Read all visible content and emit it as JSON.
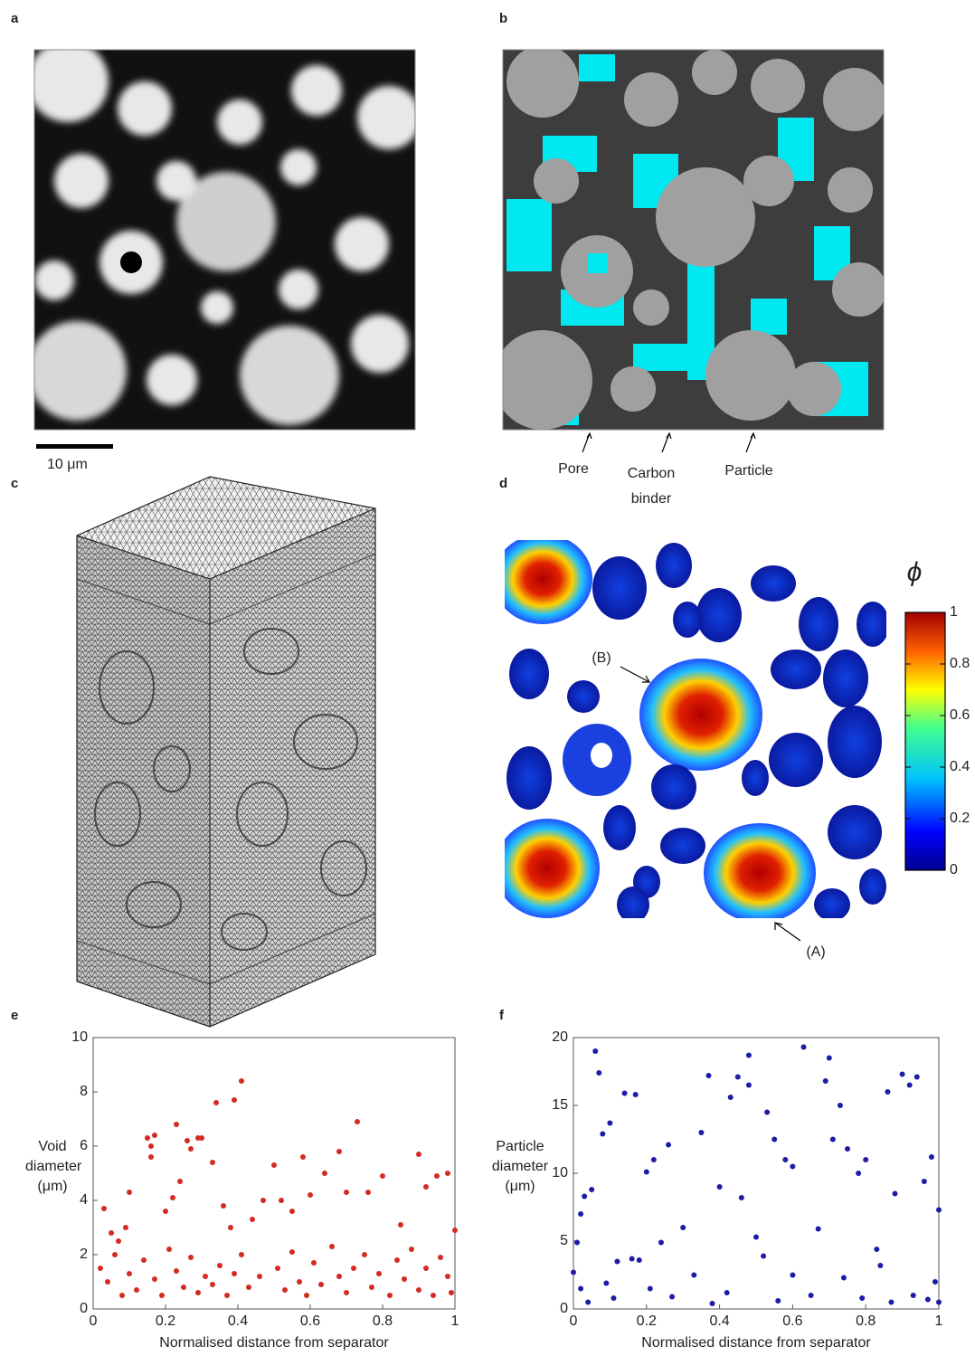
{
  "panel_labels": [
    "a",
    "b",
    "c",
    "d",
    "e",
    "f"
  ],
  "panel_a": {
    "scale_bar": "10 μm"
  },
  "panel_b": {
    "labels": [
      "Pore",
      "Carbon binder",
      "Particle"
    ]
  },
  "panel_d": {
    "symbol": "ϕ",
    "colorbar_ticks": [
      0,
      0.2,
      0.4,
      0.6,
      0.8,
      1
    ],
    "colorbar_lim": [
      0,
      1
    ],
    "annotations": [
      "(B)",
      "(A)"
    ]
  },
  "chart_data": [
    {
      "type": "scatter",
      "x_label": "Normalised distance from separator",
      "y_label": "Void diameter (μm)",
      "color": "#d42a22",
      "xlim": [
        0,
        1
      ],
      "xticks": [
        0,
        0.2,
        0.4,
        0.6,
        0.8,
        1
      ],
      "ylim": [
        0,
        10
      ],
      "yticks": [
        0,
        2,
        4,
        6,
        8,
        10
      ],
      "x": [
        0.03,
        0.05,
        0.07,
        0.09,
        0.1,
        0.15,
        0.16,
        0.16,
        0.17,
        0.2,
        0.22,
        0.23,
        0.24,
        0.26,
        0.27,
        0.29,
        0.3,
        0.33,
        0.34,
        0.36,
        0.39,
        0.41,
        0.38,
        0.44,
        0.47,
        0.5,
        0.52,
        0.55,
        0.58,
        0.6,
        0.64,
        0.68,
        0.7,
        0.73,
        0.76,
        0.8,
        0.85,
        0.9,
        0.92,
        0.95,
        0.98,
        1.0,
        0.02,
        0.04,
        0.06,
        0.08,
        0.1,
        0.12,
        0.14,
        0.17,
        0.19,
        0.21,
        0.23,
        0.25,
        0.27,
        0.29,
        0.31,
        0.33,
        0.35,
        0.37,
        0.39,
        0.41,
        0.43,
        0.46,
        0.51,
        0.53,
        0.55,
        0.57,
        0.59,
        0.61,
        0.63,
        0.66,
        0.68,
        0.7,
        0.72,
        0.75,
        0.77,
        0.79,
        0.82,
        0.84,
        0.86,
        0.88,
        0.9,
        0.92,
        0.94,
        0.96,
        0.98,
        0.99
      ],
      "values": [
        3.7,
        2.8,
        2.5,
        3.0,
        4.3,
        6.3,
        6.0,
        5.6,
        6.4,
        3.6,
        4.1,
        6.8,
        4.7,
        6.2,
        5.9,
        6.3,
        6.3,
        5.4,
        7.6,
        3.8,
        7.7,
        8.4,
        3.0,
        3.3,
        4.0,
        5.3,
        4.0,
        3.6,
        5.6,
        4.2,
        5.0,
        5.8,
        4.3,
        6.9,
        4.3,
        4.9,
        3.1,
        5.7,
        4.5,
        4.9,
        5.0,
        2.9,
        1.5,
        1.0,
        2.0,
        0.5,
        1.3,
        0.7,
        1.8,
        1.1,
        0.5,
        2.2,
        1.4,
        0.8,
        1.9,
        0.6,
        1.2,
        0.9,
        1.6,
        0.5,
        1.3,
        2.0,
        0.8,
        1.2,
        1.5,
        0.7,
        2.1,
        1.0,
        0.5,
        1.7,
        0.9,
        2.3,
        1.2,
        0.6,
        1.5,
        2.0,
        0.8,
        1.3,
        0.5,
        1.8,
        1.1,
        2.2,
        0.7,
        1.5,
        0.5,
        1.9,
        1.2,
        0.6
      ]
    },
    {
      "type": "scatter",
      "x_label": "Normalised distance from separator",
      "y_label": "Particle diameter (μm)",
      "color": "#1c1ca8",
      "xlim": [
        0,
        1
      ],
      "xticks": [
        0,
        0.2,
        0.4,
        0.6,
        0.8,
        1
      ],
      "ylim": [
        0,
        20
      ],
      "yticks": [
        0,
        5,
        10,
        15,
        20
      ],
      "x": [
        0.0,
        0.01,
        0.02,
        0.03,
        0.05,
        0.06,
        0.07,
        0.08,
        0.1,
        0.12,
        0.14,
        0.17,
        0.16,
        0.2,
        0.22,
        0.24,
        0.26,
        0.3,
        0.35,
        0.37,
        0.4,
        0.43,
        0.45,
        0.46,
        0.48,
        0.48,
        0.53,
        0.55,
        0.58,
        0.6,
        0.63,
        0.67,
        0.69,
        0.7,
        0.71,
        0.73,
        0.75,
        0.78,
        0.8,
        0.83,
        0.86,
        0.88,
        0.9,
        0.92,
        0.94,
        0.96,
        0.98,
        1.0,
        0.02,
        0.04,
        0.09,
        0.11,
        0.18,
        0.21,
        0.27,
        0.33,
        0.38,
        0.42,
        0.5,
        0.52,
        0.56,
        0.6,
        0.65,
        0.74,
        0.79,
        0.84,
        0.87,
        0.93,
        0.97,
        0.99,
        1.0
      ],
      "values": [
        2.7,
        4.9,
        7.0,
        8.3,
        8.8,
        19.0,
        17.4,
        12.9,
        13.7,
        3.5,
        15.9,
        15.8,
        3.7,
        10.1,
        11.0,
        4.9,
        12.1,
        6.0,
        13.0,
        17.2,
        9.0,
        15.6,
        17.1,
        8.2,
        18.7,
        16.5,
        14.5,
        12.5,
        11.0,
        10.5,
        19.3,
        5.9,
        16.8,
        18.5,
        12.5,
        15.0,
        11.8,
        10.0,
        11.0,
        4.4,
        16.0,
        8.5,
        17.3,
        16.5,
        17.1,
        9.4,
        11.2,
        7.3,
        1.5,
        0.5,
        1.9,
        0.8,
        3.6,
        1.5,
        0.9,
        2.5,
        0.4,
        1.2,
        5.3,
        3.9,
        0.6,
        2.5,
        1.0,
        2.3,
        0.8,
        3.2,
        0.5,
        1.0,
        0.7,
        2.0,
        0.5
      ]
    }
  ]
}
